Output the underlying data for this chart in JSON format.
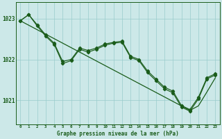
{
  "title": "Graphe pression niveau de la mer (hPa)",
  "bg_color": "#cce8e8",
  "grid_color": "#99cccc",
  "line_color": "#1a5c1a",
  "marker_color": "#1a5c1a",
  "tick_label_color": "#1a5c1a",
  "x_labels": [
    "0",
    "1",
    "2",
    "3",
    "4",
    "5",
    "6",
    "7",
    "8",
    "9",
    "10",
    "11",
    "12",
    "13",
    "14",
    "15",
    "16",
    "17",
    "18",
    "19",
    "20",
    "21",
    "22",
    "23"
  ],
  "ylim": [
    1020.4,
    1023.4
  ],
  "yticks": [
    1021,
    1022,
    1023
  ],
  "line_wiggly1": [
    1022.95,
    1023.1,
    1022.85,
    1022.6,
    1022.4,
    1021.95,
    1022.0,
    1022.28,
    1022.22,
    1022.28,
    1022.38,
    1022.42,
    1022.45,
    1022.08,
    1022.0,
    1021.72,
    1021.52,
    1021.32,
    1021.22,
    1020.87,
    1020.77,
    1021.07,
    1021.55,
    1021.65
  ],
  "line_wiggly2": [
    1022.95,
    1023.1,
    1022.82,
    1022.57,
    1022.37,
    1021.9,
    1021.97,
    1022.25,
    1022.18,
    1022.25,
    1022.35,
    1022.4,
    1022.42,
    1022.05,
    1021.97,
    1021.68,
    1021.48,
    1021.28,
    1021.18,
    1020.83,
    1020.73,
    1021.03,
    1021.52,
    1021.62
  ],
  "line_straight": [
    1022.95,
    1022.84,
    1022.73,
    1022.62,
    1022.51,
    1022.4,
    1022.29,
    1022.18,
    1022.07,
    1021.96,
    1021.85,
    1021.74,
    1021.63,
    1021.52,
    1021.41,
    1021.3,
    1021.19,
    1021.08,
    1020.97,
    1020.86,
    1020.75,
    1020.86,
    1021.2,
    1021.55
  ]
}
